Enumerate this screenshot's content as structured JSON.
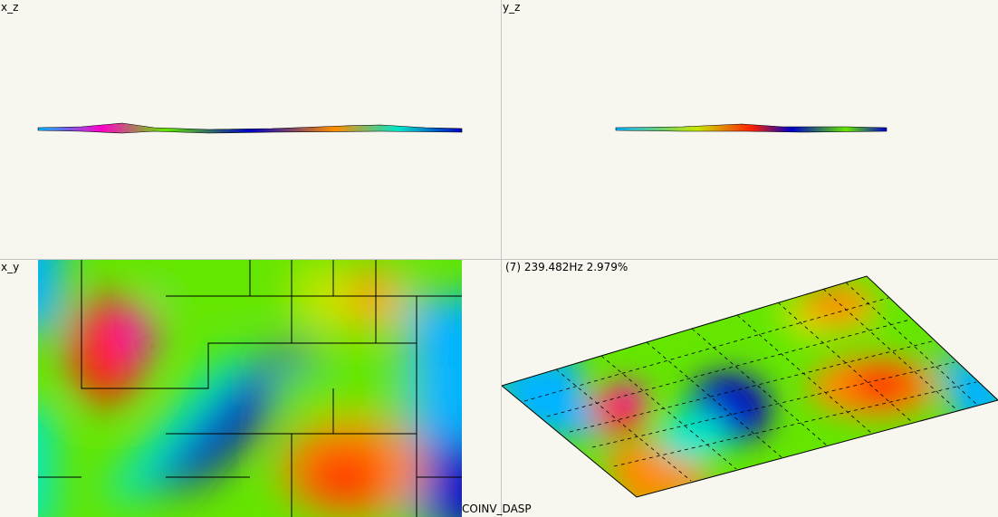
{
  "views": {
    "xz": {
      "label": "x_z"
    },
    "yz": {
      "label": "y_z"
    },
    "xy": {
      "label": "x_y"
    },
    "iso": {
      "label": "(7) 239.482Hz 2.979%"
    }
  },
  "footer": {
    "text": "COINV_DASP"
  },
  "colors": {
    "background": "#f7f6ef",
    "mesh_lines": "#000000",
    "colormap": [
      "#0000c8",
      "#00b4ff",
      "#00e6c8",
      "#64e600",
      "#c8e600",
      "#ff8c00",
      "#ff2000",
      "#ff00c8"
    ]
  }
}
